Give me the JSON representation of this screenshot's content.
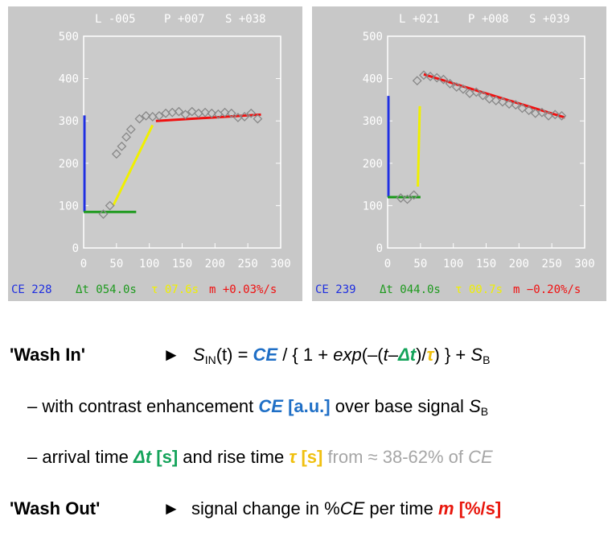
{
  "chart_data": [
    {
      "type": "scatter",
      "title": "",
      "header": {
        "l": "L -005",
        "p": "P +007",
        "s": "S +038"
      },
      "xlim": [
        0,
        300
      ],
      "ylim": [
        0,
        500
      ],
      "x_ticks": [
        "0",
        "50",
        "100",
        "150",
        "200",
        "250",
        "300"
      ],
      "y_ticks": [
        "0",
        "100",
        "200",
        "300",
        "400",
        "500"
      ],
      "points": [
        [
          30,
          80
        ],
        [
          40,
          100
        ],
        [
          50,
          222
        ],
        [
          58,
          240
        ],
        [
          65,
          262
        ],
        [
          72,
          280
        ],
        [
          85,
          305
        ],
        [
          95,
          312
        ],
        [
          105,
          310
        ],
        [
          115,
          312
        ],
        [
          125,
          318
        ],
        [
          135,
          320
        ],
        [
          145,
          322
        ],
        [
          155,
          315
        ],
        [
          165,
          322
        ],
        [
          175,
          318
        ],
        [
          185,
          320
        ],
        [
          195,
          318
        ],
        [
          205,
          316
        ],
        [
          215,
          320
        ],
        [
          225,
          318
        ],
        [
          235,
          308
        ],
        [
          245,
          310
        ],
        [
          255,
          318
        ],
        [
          265,
          305
        ]
      ],
      "baseline_fit": {
        "x": [
          0,
          80
        ],
        "y": [
          85,
          85
        ]
      },
      "rise_fit": {
        "x": [
          45,
          105
        ],
        "y": [
          100,
          290
        ]
      },
      "ce_bar": {
        "x": 0,
        "y": [
          85,
          313
        ]
      },
      "washout_fit": {
        "x": [
          110,
          270
        ],
        "y": [
          300,
          315
        ]
      },
      "footer": {
        "ce": "CE 228",
        "dt": "Δt 054.0s",
        "tau": "τ 07.6s",
        "m": "m +0.03%/s"
      }
    },
    {
      "type": "scatter",
      "title": "",
      "header": {
        "l": "L +021",
        "p": "P +008",
        "s": "S +039"
      },
      "xlim": [
        0,
        300
      ],
      "ylim": [
        0,
        500
      ],
      "x_ticks": [
        "0",
        "50",
        "100",
        "150",
        "200",
        "250",
        "300"
      ],
      "y_ticks": [
        "0",
        "100",
        "200",
        "300",
        "400",
        "500"
      ],
      "points": [
        [
          20,
          118
        ],
        [
          30,
          115
        ],
        [
          40,
          125
        ],
        [
          45,
          395
        ],
        [
          55,
          408
        ],
        [
          65,
          405
        ],
        [
          75,
          402
        ],
        [
          85,
          398
        ],
        [
          95,
          388
        ],
        [
          105,
          380
        ],
        [
          115,
          375
        ],
        [
          125,
          365
        ],
        [
          135,
          368
        ],
        [
          145,
          360
        ],
        [
          155,
          352
        ],
        [
          165,
          348
        ],
        [
          175,
          345
        ],
        [
          185,
          340
        ],
        [
          195,
          338
        ],
        [
          205,
          330
        ],
        [
          215,
          325
        ],
        [
          225,
          318
        ],
        [
          235,
          320
        ],
        [
          245,
          312
        ],
        [
          255,
          315
        ],
        [
          265,
          312
        ]
      ],
      "baseline_fit": {
        "x": [
          0,
          50
        ],
        "y": [
          120,
          120
        ]
      },
      "rise_fit": {
        "x": [
          46,
          49
        ],
        "y": [
          145,
          335
        ]
      },
      "ce_bar": {
        "x": 0,
        "y": [
          120,
          359
        ]
      },
      "washout_fit": {
        "x": [
          55,
          270
        ],
        "y": [
          410,
          308
        ]
      },
      "footer": {
        "ce": "CE 239",
        "dt": "Δt 044.0s",
        "tau": "τ 00.7s",
        "m": "m −0.20%/s"
      }
    }
  ],
  "colors": {
    "ce": "#1f2fe0",
    "dt": "#1e9a1e",
    "tau": "#f0f000",
    "m": "#f01010",
    "panel_bg": "#c8c8c8",
    "plot_bg": "#cbcbcb"
  },
  "text": {
    "wash_in_label": "'Wash In'",
    "wash_in_arrow": "►",
    "f_s": "S",
    "f_in": "IN",
    "f_t": "(t) = ",
    "f_ce": "CE",
    "f_mid": " / { 1 + ",
    "f_exp": "exp",
    "f_open": "(–(",
    "f_t2": "t",
    "f_minus": "–",
    "f_dt": "Δt",
    "f_slash": ")/",
    "f_tau": "τ",
    "f_close": ") } + ",
    "f_sb": "S",
    "f_b": "B",
    "line2_a": "– with contrast enhancement ",
    "line2_ce": "CE",
    "line2_au": " [a.u.]",
    "line2_b": " over base signal ",
    "line2_s": "S",
    "line2_sb": "B",
    "line3_a": "– arrival time ",
    "line3_dt": "Δt",
    "line3_s1": " [s]",
    "line3_b": " and rise time ",
    "line3_tau": "τ",
    "line3_s2": " [s]",
    "line3_from": " from ≈ 38-62% of ",
    "line3_ce": "CE",
    "wash_out_label": "'Wash Out'",
    "wash_out_arrow": "►",
    "line4_a": "signal change in %",
    "line4_ce": "CE",
    "line4_b": " per time ",
    "line4_m": "m",
    "line4_unit": " [%/s]"
  }
}
